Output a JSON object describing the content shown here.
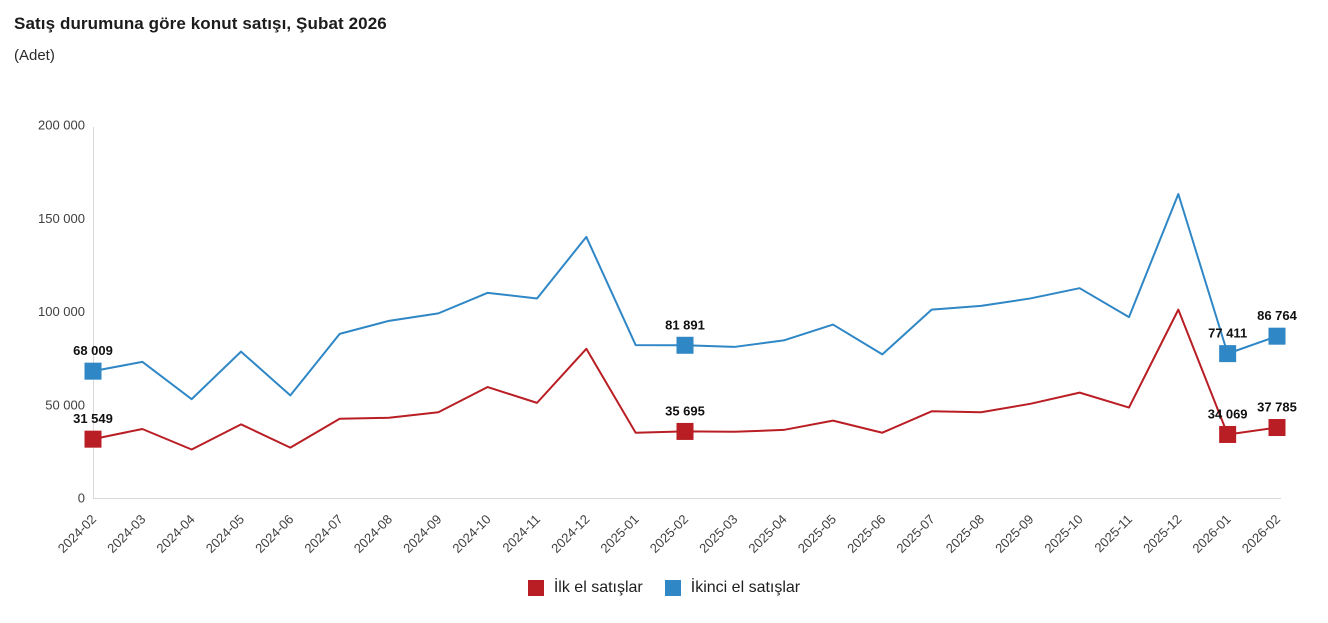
{
  "chart_data": {
    "type": "line",
    "title": "Satış durumuna göre konut satışı, Şubat 2026",
    "subtitle": "(Adet)",
    "categories": [
      "2024-02",
      "2024-03",
      "2024-04",
      "2024-05",
      "2024-06",
      "2024-07",
      "2024-08",
      "2024-09",
      "2024-10",
      "2024-11",
      "2024-12",
      "2025-01",
      "2025-02",
      "2025-03",
      "2025-04",
      "2025-05",
      "2025-06",
      "2025-07",
      "2025-08",
      "2025-09",
      "2025-10",
      "2025-11",
      "2025-12",
      "2026-01",
      "2026-02"
    ],
    "series": [
      {
        "name": "İlk el satışlar",
        "color": "#b91e24",
        "values": [
          31549,
          37000,
          26000,
          39500,
          27000,
          42500,
          43000,
          46000,
          59500,
          51000,
          80000,
          35000,
          35695,
          35500,
          36500,
          41500,
          35000,
          46500,
          46000,
          50500,
          56500,
          48500,
          101000,
          34069,
          37785
        ],
        "labeled_points": [
          {
            "index": 0,
            "label": "31 549"
          },
          {
            "index": 12,
            "label": "35 695"
          },
          {
            "index": 23,
            "label": "34 069"
          },
          {
            "index": 24,
            "label": "37 785"
          }
        ]
      },
      {
        "name": "İkinci el satışlar",
        "color": "#2f87c6",
        "values": [
          68009,
          73000,
          53000,
          78500,
          55000,
          88000,
          95000,
          99000,
          110000,
          107000,
          140000,
          82000,
          81891,
          81000,
          84500,
          93000,
          77000,
          101000,
          103000,
          107000,
          112500,
          97000,
          163000,
          77411,
          86764
        ],
        "labeled_points": [
          {
            "index": 0,
            "label": "68 009"
          },
          {
            "index": 12,
            "label": "81 891"
          },
          {
            "index": 23,
            "label": "77 411"
          },
          {
            "index": 24,
            "label": "86 764"
          }
        ]
      }
    ],
    "ylim": [
      0,
      200000
    ],
    "yticks": [
      {
        "value": 0,
        "label": "0"
      },
      {
        "value": 50000,
        "label": "50 000"
      },
      {
        "value": 100000,
        "label": "100 000"
      },
      {
        "value": 150000,
        "label": "150 000"
      },
      {
        "value": 200000,
        "label": "200 000"
      }
    ],
    "grid": false,
    "legend_position": "bottom",
    "axis_color": "#d8d8d8",
    "tick_label_color": "#404040",
    "data_label_color": "#111111"
  }
}
